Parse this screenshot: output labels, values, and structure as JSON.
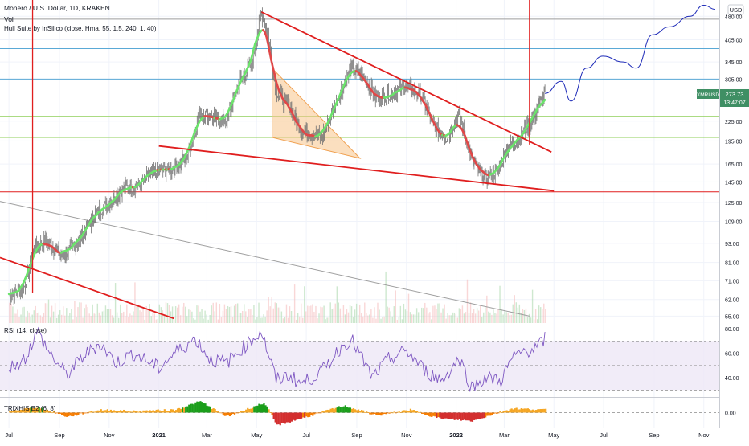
{
  "header": {
    "symbol_line": "Monero / U.S. Dollar, 1D, KRAKEN",
    "vol_label": "Vol",
    "hull_label": "Hull Suite by InSilico (close, Hma, 55, 1.5, 240, 1, 40)"
  },
  "currency_badge": "USD",
  "price_tag": {
    "symbol": "XMRUSD",
    "price": "273.73",
    "countdown": "13:47:07"
  },
  "colors": {
    "bull": "#26a69a",
    "bear": "#ef5350",
    "hull_up": "#6be36b",
    "hull_down": "#e04848",
    "trend_red": "#e01e1e",
    "fib_blue": "#5aa9d6",
    "fib_green": "#8fcf5a",
    "hline_gray": "#9e9e9e",
    "rsi_line": "#7e57c2",
    "rsi_band": "#ede7f6",
    "triangle_fill": "#f7c48a",
    "projection": "#1e2bb8",
    "price_tag_bg": "#3f8f64"
  },
  "chart_data": [
    {
      "type": "line",
      "title": "Monero / U.S. Dollar, 1D, KRAKEN",
      "x_ticks": [
        "Jul",
        "Sep",
        "Nov",
        "2021",
        "Mar",
        "May",
        "Jul",
        "Sep",
        "Nov",
        "2022",
        "Mar",
        "May",
        "Jul",
        "Sep",
        "Nov"
      ],
      "y_ticks": [
        "480.00",
        "405.00",
        "345.00",
        "305.00",
        "225.00",
        "195.00",
        "165.00",
        "145.00",
        "125.00",
        "109.00",
        "93.00",
        "81.00",
        "71.00",
        "62.00",
        "55.00"
      ],
      "y_scale": "log",
      "ylim": [
        52,
        540
      ],
      "xlim": [
        "2020-06-20",
        "2022-11-20"
      ],
      "series": [
        {
          "values": [
            [
              "2020-07-01",
              64
            ],
            [
              "2020-07-20",
              68
            ],
            [
              "2020-08-01",
              90
            ],
            [
              "2020-08-15",
              95
            ],
            [
              "2020-09-05",
              85
            ],
            [
              "2020-09-25",
              95
            ],
            [
              "2020-10-15",
              115
            ],
            [
              "2020-11-01",
              125
            ],
            [
              "2020-11-20",
              140
            ],
            [
              "2020-12-05",
              140
            ],
            [
              "2020-12-25",
              155
            ],
            [
              "2021-01-05",
              158
            ],
            [
              "2021-01-20",
              160
            ],
            [
              "2021-02-05",
              175
            ],
            [
              "2021-02-20",
              240
            ],
            [
              "2021-03-10",
              230
            ],
            [
              "2021-03-25",
              225
            ],
            [
              "2021-04-10",
              300
            ],
            [
              "2021-04-25",
              340
            ],
            [
              "2021-05-07",
              495
            ],
            [
              "2021-05-15",
              420
            ],
            [
              "2021-05-25",
              280
            ],
            [
              "2021-06-10",
              250
            ],
            [
              "2021-06-25",
              210
            ],
            [
              "2021-07-20",
              200
            ],
            [
              "2021-08-10",
              270
            ],
            [
              "2021-08-25",
              330
            ],
            [
              "2021-09-10",
              310
            ],
            [
              "2021-09-25",
              265
            ],
            [
              "2021-10-15",
              275
            ],
            [
              "2021-11-01",
              290
            ],
            [
              "2021-11-20",
              270
            ],
            [
              "2021-12-05",
              215
            ],
            [
              "2021-12-20",
              200
            ],
            [
              "2022-01-05",
              235
            ],
            [
              "2022-01-20",
              170
            ],
            [
              "2022-02-05",
              150
            ],
            [
              "2022-02-20",
              155
            ],
            [
              "2022-03-05",
              185
            ],
            [
              "2022-03-20",
              200
            ],
            [
              "2022-04-05",
              230
            ],
            [
              "2022-04-20",
              273.73
            ]
          ]
        }
      ],
      "annotations": [
        {
          "kind": "falling_wedge_upper",
          "from": [
            "2021-05-07",
            495
          ],
          "to": [
            "2022-04-28",
            180
          ]
        },
        {
          "kind": "falling_wedge_lower",
          "from": [
            "2021-01-01",
            188
          ],
          "to": [
            "2022-05-01",
            136
          ]
        },
        {
          "kind": "descending_line",
          "from": [
            "2020-06-20",
            84
          ],
          "to": [
            "2021-01-20",
            54
          ]
        },
        {
          "kind": "long_diagonal",
          "from": [
            "2020-06-20",
            126
          ],
          "to": [
            "2022-04-01",
            55
          ]
        },
        {
          "kind": "triangle",
          "points": [
            [
              "2021-05-20",
              330
            ],
            [
              "2021-05-20",
              200
            ],
            [
              "2021-09-05",
              172
            ]
          ]
        },
        {
          "kind": "vertical_line",
          "x": "2020-07-30",
          "from": 65,
          "to": 550
        },
        {
          "kind": "vertical_line",
          "x": "2022-04-01",
          "from": 190,
          "to": 550
        },
        {
          "kind": "horizontal_levels",
          "values": [
            135,
            200,
            233,
            305,
            380,
            470
          ]
        },
        {
          "kind": "projection_path",
          "points": [
            [
              "2022-04-20",
              275
            ],
            [
              "2022-05-10",
              300
            ],
            [
              "2022-05-22",
              260
            ],
            [
              "2022-06-10",
              330
            ],
            [
              "2022-06-30",
              360
            ],
            [
              "2022-07-25",
              345
            ],
            [
              "2022-08-10",
              330
            ],
            [
              "2022-08-30",
              420
            ],
            [
              "2022-09-20",
              445
            ],
            [
              "2022-10-15",
              480
            ],
            [
              "2022-11-01",
              520
            ],
            [
              "2022-11-15",
              505
            ]
          ]
        }
      ]
    },
    {
      "type": "line",
      "title": "RSI (14, close)",
      "y_ticks": [
        "80.00",
        "60.00",
        "40.00"
      ],
      "ylim": [
        25,
        82
      ],
      "band": [
        30,
        70
      ],
      "midline": 50,
      "series": [
        {
          "values": [
            [
              "2020-07-01",
              48
            ],
            [
              "2020-07-20",
              55
            ],
            [
              "2020-08-05",
              78
            ],
            [
              "2020-08-20",
              60
            ],
            [
              "2020-09-10",
              42
            ],
            [
              "2020-10-01",
              58
            ],
            [
              "2020-10-20",
              68
            ],
            [
              "2020-11-10",
              52
            ],
            [
              "2020-12-01",
              60
            ],
            [
              "2021-01-01",
              48
            ],
            [
              "2021-01-20",
              60
            ],
            [
              "2021-02-15",
              72
            ],
            [
              "2021-03-05",
              55
            ],
            [
              "2021-03-25",
              52
            ],
            [
              "2021-04-15",
              65
            ],
            [
              "2021-05-07",
              78
            ],
            [
              "2021-05-25",
              38
            ],
            [
              "2021-06-10",
              42
            ],
            [
              "2021-06-25",
              35
            ],
            [
              "2021-07-20",
              45
            ],
            [
              "2021-08-10",
              63
            ],
            [
              "2021-08-25",
              72
            ],
            [
              "2021-09-20",
              40
            ],
            [
              "2021-10-10",
              55
            ],
            [
              "2021-11-01",
              62
            ],
            [
              "2021-11-25",
              45
            ],
            [
              "2021-12-15",
              38
            ],
            [
              "2022-01-05",
              56
            ],
            [
              "2022-01-20",
              32
            ],
            [
              "2022-02-05",
              40
            ],
            [
              "2022-02-25",
              38
            ],
            [
              "2022-03-10",
              55
            ],
            [
              "2022-03-25",
              62
            ],
            [
              "2022-04-10",
              64
            ],
            [
              "2022-04-20",
              72
            ]
          ]
        }
      ]
    },
    {
      "type": "area",
      "title": "TRIXHIS B2 (6, 8)",
      "y_ticks": [
        "0.00"
      ],
      "ylim": [
        -1,
        1
      ],
      "series": [
        {
          "values": [
            [
              "2020-07-01",
              0.1
            ],
            [
              "2020-08-05",
              0.4
            ],
            [
              "2020-09-10",
              -0.3
            ],
            [
              "2020-10-20",
              0.2
            ],
            [
              "2020-12-01",
              0.1
            ],
            [
              "2021-01-20",
              0.2
            ],
            [
              "2021-02-20",
              0.8
            ],
            [
              "2021-03-25",
              -0.3
            ],
            [
              "2021-04-25",
              0.4
            ],
            [
              "2021-05-10",
              0.7
            ],
            [
              "2021-05-25",
              -0.9
            ],
            [
              "2021-06-25",
              -0.4
            ],
            [
              "2021-08-15",
              0.5
            ],
            [
              "2021-09-25",
              -0.2
            ],
            [
              "2021-11-05",
              0.2
            ],
            [
              "2021-12-10",
              -0.4
            ],
            [
              "2022-01-20",
              -0.6
            ],
            [
              "2022-02-10",
              -0.2
            ],
            [
              "2022-03-10",
              0.3
            ],
            [
              "2022-04-20",
              0.2
            ]
          ]
        }
      ]
    }
  ]
}
